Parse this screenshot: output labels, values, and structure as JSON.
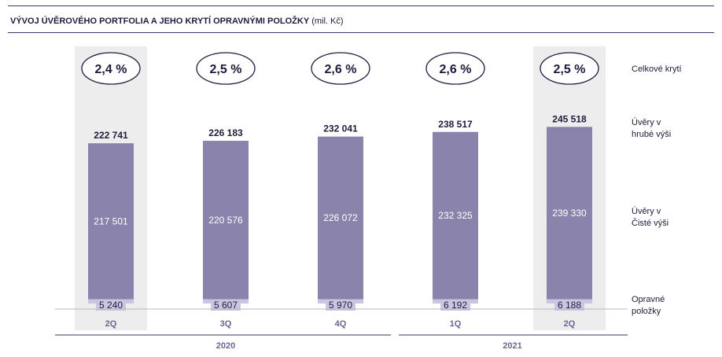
{
  "title": {
    "main": "VÝVOJ ÚVĚROVÉHO PORTFOLIA A JEHO KRYTÍ OPRAVNÝMI POLOŽKY",
    "unit": "(mil. Kč)"
  },
  "legend": {
    "coverage": "Celkové krytí",
    "gross_line1": "Úvěry v",
    "gross_line2": "hrubé výši",
    "net_line1": "Úvěry v",
    "net_line2": "Čisté výši",
    "prov_line1": "Opravné",
    "prov_line2": "položky"
  },
  "colors": {
    "net_bar": "#8a84ad",
    "provision_bar": "#cbc6e0",
    "highlight": "#ededed",
    "text_dark": "#1f1b3d",
    "axis_text": "#6b6591",
    "rule": "#3c3763"
  },
  "chart_data": {
    "type": "bar",
    "stacked": true,
    "categories": [
      "2Q",
      "3Q",
      "4Q",
      "1Q",
      "2Q"
    ],
    "years": [
      {
        "label": "2020",
        "categories": [
          0,
          1,
          2
        ]
      },
      {
        "label": "2021",
        "categories": [
          3,
          4
        ]
      }
    ],
    "highlighted": [
      0,
      4
    ],
    "series": [
      {
        "name": "Opravné položky",
        "values": [
          5240,
          5607,
          5970,
          6192,
          6188
        ],
        "value_labels": [
          "5 240",
          "5 607",
          "5 970",
          "6 192",
          "6 188"
        ]
      },
      {
        "name": "Úvěry v Čisté výši",
        "values": [
          217501,
          220576,
          226072,
          232325,
          239330
        ],
        "value_labels": [
          "217 501",
          "220 576",
          "226 072",
          "232 325",
          "239 330"
        ]
      }
    ],
    "totals": {
      "name": "Úvěry v hrubé výši",
      "values": [
        222741,
        226183,
        232041,
        238517,
        245518
      ],
      "value_labels": [
        "222 741",
        "226 183",
        "232 041",
        "238 517",
        "245 518"
      ]
    },
    "coverage": {
      "name": "Celkové krytí",
      "values": [
        2.4,
        2.5,
        2.6,
        2.6,
        2.5
      ],
      "labels": [
        "2,4 %",
        "2,5 %",
        "2,6 %",
        "2,6 %",
        "2,5 %"
      ]
    }
  }
}
